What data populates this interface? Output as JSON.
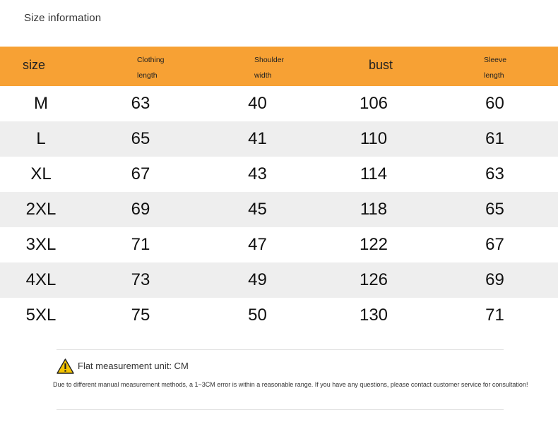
{
  "page_title": "Size information",
  "table": {
    "headers": [
      {
        "line1": "size",
        "line2": ""
      },
      {
        "line1": "Clothing",
        "line2": "length"
      },
      {
        "line1": "Shoulder",
        "line2": "width"
      },
      {
        "line1": "bust",
        "line2": ""
      },
      {
        "line1": "Sleeve",
        "line2": "length"
      }
    ],
    "rows": [
      [
        "M",
        "63",
        "40",
        "106",
        "60"
      ],
      [
        "L",
        "65",
        "41",
        "110",
        "61"
      ],
      [
        "XL",
        "67",
        "43",
        "114",
        "63"
      ],
      [
        "2XL",
        "69",
        "45",
        "118",
        "65"
      ],
      [
        "3XL",
        "71",
        "47",
        "122",
        "67"
      ],
      [
        "4XL",
        "73",
        "49",
        "126",
        "69"
      ],
      [
        "5XL",
        "75",
        "50",
        "130",
        "71"
      ]
    ]
  },
  "note": {
    "icon": "warning-icon",
    "title": "Flat measurement unit: CM",
    "text": "Due to different manual measurement methods, a 1~3CM error is within a reasonable range. If you have any questions, please contact customer service for consultation!"
  },
  "colors": {
    "header_bg": "#f7a134",
    "alt_row_bg": "#eeeeee",
    "warning_yellow": "#f5c400"
  }
}
